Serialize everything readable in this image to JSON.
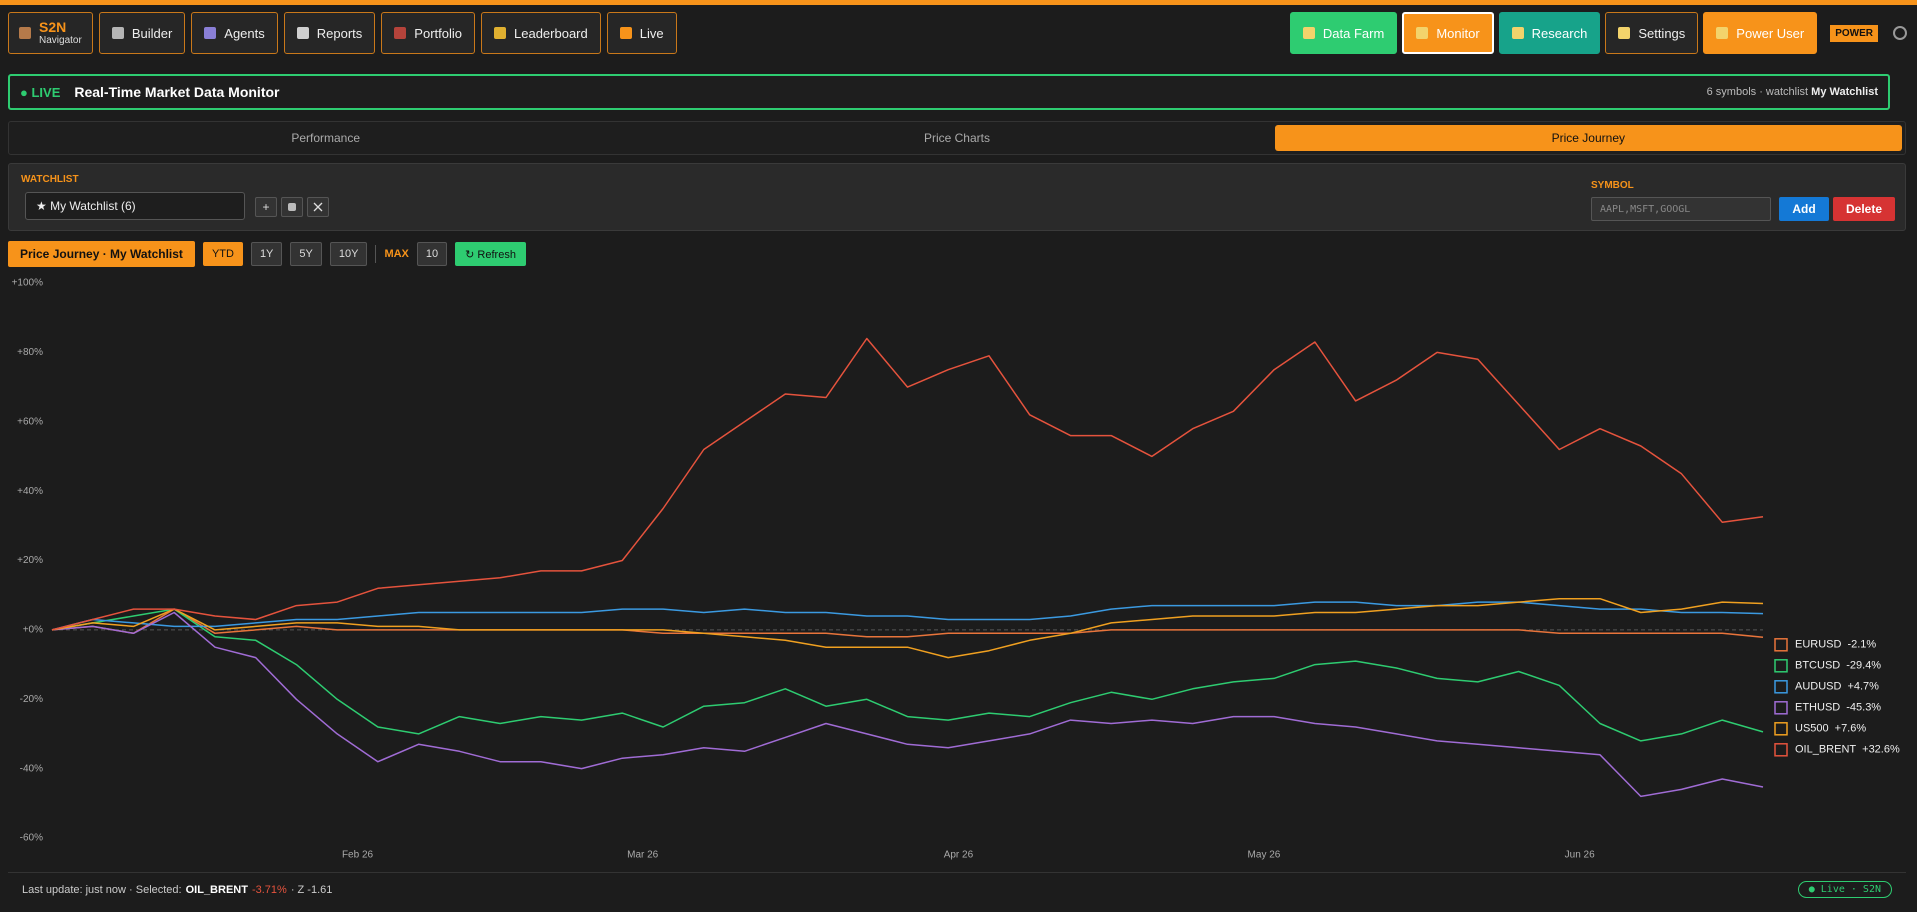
{
  "nav": {
    "brand": {
      "title": "S2N",
      "subtitle": "Navigator"
    },
    "items": [
      "Builder",
      "Agents",
      "Reports",
      "Portfolio",
      "Leaderboard",
      "Live"
    ],
    "right_items": [
      "Data Farm",
      "Monitor",
      "Research",
      "Settings",
      "Power User"
    ],
    "badge": "POWER"
  },
  "header": {
    "status": "● LIVE",
    "title": "Real-Time Market Data Monitor",
    "meta": "6 symbols · watchlist",
    "meta_strong": "My Watchlist"
  },
  "tabs": {
    "items": [
      "Performance",
      "Price Charts",
      "Price Journey"
    ],
    "active": 2
  },
  "watchlist": {
    "label": "WATCHLIST",
    "select": "★ My Watchlist (6)",
    "add_button": "+",
    "symbol_label": "SYMBOL",
    "symbol_placeholder": "AAPL,MSFT,GOOGL",
    "add": "Add",
    "delete": "Delete"
  },
  "toolbar": {
    "title": "Price Journey · My Watchlist",
    "ranges": [
      "YTD",
      "1Y",
      "5Y",
      "10Y"
    ],
    "active_range": 0,
    "max_label": "MAX",
    "max_value": "10",
    "refresh": "↻ Refresh"
  },
  "chart_data": {
    "type": "line",
    "x": [
      1,
      5,
      9,
      13,
      17,
      21,
      25,
      29,
      33,
      37,
      41,
      45,
      49,
      53,
      57,
      61,
      65,
      69,
      73,
      77,
      81,
      85,
      89,
      93,
      97,
      101,
      105,
      109,
      113,
      117,
      121,
      125,
      129,
      133,
      137,
      141,
      145,
      149,
      153,
      157,
      161,
      165,
      169
    ],
    "xlim": [
      1,
      169
    ],
    "xticks": [
      {
        "value": 31,
        "label": "Feb 26"
      },
      {
        "value": 59,
        "label": "Mar 26"
      },
      {
        "value": 90,
        "label": "Apr 26"
      },
      {
        "value": 120,
        "label": "May 26"
      },
      {
        "value": 151,
        "label": "Jun 26"
      }
    ],
    "ylim": [
      -60,
      100
    ],
    "yticks": [
      {
        "value": 100,
        "label": "+100%"
      },
      {
        "value": 80,
        "label": "+80%"
      },
      {
        "value": 60,
        "label": "+60%"
      },
      {
        "value": 40,
        "label": "+40%"
      },
      {
        "value": 20,
        "label": "+20%"
      },
      {
        "value": 0,
        "label": "+0%"
      },
      {
        "value": -20,
        "label": "-20%"
      },
      {
        "value": -40,
        "label": "-40%"
      },
      {
        "value": -60,
        "label": "-60%"
      }
    ],
    "grid": false,
    "legend": "right",
    "series": [
      {
        "name": "EURUSD",
        "change_label": "-2.1%",
        "color": "#e8743b",
        "values": [
          0,
          1,
          -1,
          6,
          -1,
          0,
          1,
          0,
          0,
          0,
          0,
          0,
          0,
          0,
          0,
          -1,
          -1,
          -1,
          -1,
          -1,
          -2,
          -2,
          -1,
          -1,
          -1,
          -1,
          0,
          0,
          0,
          0,
          0,
          0,
          0,
          0,
          0,
          0,
          0,
          -1,
          -1,
          -1,
          -1,
          -1,
          -2.1
        ]
      },
      {
        "name": "BTCUSD",
        "change_label": "-29.4%",
        "color": "#2ecc71",
        "values": [
          0,
          2,
          4,
          6,
          -2,
          -3,
          -10,
          -20,
          -28,
          -30,
          -25,
          -27,
          -25,
          -26,
          -24,
          -28,
          -22,
          -21,
          -17,
          -22,
          -20,
          -25,
          -26,
          -24,
          -25,
          -21,
          -18,
          -20,
          -17,
          -15,
          -14,
          -10,
          -9,
          -11,
          -14,
          -15,
          -12,
          -16,
          -27,
          -32,
          -30,
          -26,
          -29.4
        ]
      },
      {
        "name": "AUDUSD",
        "change_label": "+4.7%",
        "color": "#3b9ae1",
        "values": [
          0,
          3,
          2,
          1,
          1,
          2,
          3,
          3,
          4,
          5,
          5,
          5,
          5,
          5,
          6,
          6,
          5,
          6,
          5,
          5,
          4,
          4,
          3,
          3,
          3,
          4,
          6,
          7,
          7,
          7,
          7,
          8,
          8,
          7,
          7,
          8,
          8,
          7,
          6,
          6,
          5,
          5,
          4.7
        ]
      },
      {
        "name": "ETHUSD",
        "change_label": "-45.3%",
        "color": "#a06cd5",
        "values": [
          0,
          1,
          -1,
          5,
          -5,
          -8,
          -20,
          -30,
          -38,
          -33,
          -35,
          -38,
          -38,
          -40,
          -37,
          -36,
          -34,
          -35,
          -31,
          -27,
          -30,
          -33,
          -34,
          -32,
          -30,
          -26,
          -27,
          -26,
          -27,
          -25,
          -25,
          -27,
          -28,
          -30,
          -32,
          -33,
          -34,
          -35,
          -36,
          -48,
          -46,
          -43,
          -45.3
        ]
      },
      {
        "name": "US500",
        "change_label": "+7.6%",
        "color": "#f0a020",
        "values": [
          0,
          2,
          1,
          6,
          0,
          1,
          2,
          2,
          1,
          1,
          0,
          0,
          0,
          0,
          0,
          0,
          -1,
          -2,
          -3,
          -5,
          -5,
          -5,
          -8,
          -6,
          -3,
          -1,
          2,
          3,
          4,
          4,
          4,
          5,
          5,
          6,
          7,
          7,
          8,
          9,
          9,
          5,
          6,
          8,
          7.6
        ]
      },
      {
        "name": "OIL_BRENT",
        "change_label": "+32.6%",
        "color": "#e5533d",
        "values": [
          0,
          3,
          6,
          6,
          4,
          3,
          7,
          8,
          12,
          13,
          14,
          15,
          17,
          17,
          20,
          35,
          52,
          60,
          68,
          67,
          84,
          70,
          75,
          79,
          62,
          56,
          56,
          50,
          58,
          63,
          75,
          83,
          66,
          72,
          80,
          78,
          65,
          52,
          58,
          53,
          45,
          31,
          32.6
        ]
      }
    ]
  },
  "status": {
    "text": "Last update: just now · Selected:",
    "selected": "OIL_BRENT",
    "change": "-3.71%",
    "z": "· Z -1.61",
    "badge": "● Live · S2N"
  }
}
